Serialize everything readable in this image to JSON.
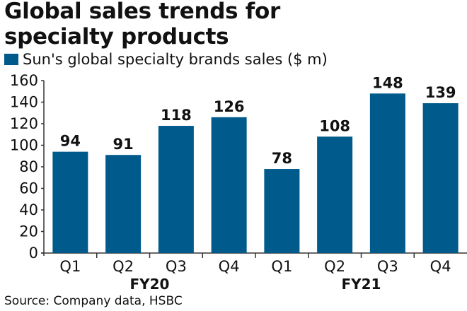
{
  "chart_data": {
    "type": "bar",
    "title": "Global sales trends for specialty products",
    "title_lines": [
      "Global sales trends for",
      "specialty products"
    ],
    "categories": [
      "Q1",
      "Q2",
      "Q3",
      "Q4",
      "Q1",
      "Q2",
      "Q3",
      "Q4"
    ],
    "groups": [
      {
        "label": "FY20",
        "count": 4
      },
      {
        "label": "FY21",
        "count": 4
      }
    ],
    "series": [
      {
        "name": "Sun's global specialty brands sales ($ m)",
        "values": [
          94,
          91,
          118,
          126,
          78,
          108,
          148,
          139
        ],
        "color": "#005a8c"
      }
    ],
    "ylim": [
      0,
      160
    ],
    "yticks": [
      0,
      20,
      40,
      60,
      80,
      100,
      120,
      140,
      160
    ],
    "xlabel": "",
    "ylabel": "",
    "grid": false,
    "legend_position": "top-left",
    "source": "Source: Company data, HSBC"
  }
}
